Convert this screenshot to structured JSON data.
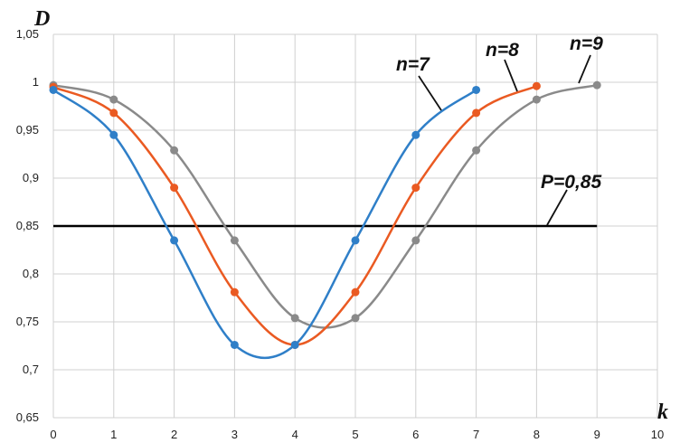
{
  "chart_data": {
    "type": "line",
    "title": "",
    "xlabel": "k",
    "ylabel": "D",
    "xlim": [
      0,
      10
    ],
    "ylim": [
      0.65,
      1.05
    ],
    "x_ticks": [
      "0",
      "1",
      "2",
      "3",
      "4",
      "5",
      "6",
      "7",
      "8",
      "9",
      "10"
    ],
    "y_ticks": [
      "0,65",
      "0,7",
      "0,75",
      "0,8",
      "0,85",
      "0,9",
      "0,95",
      "1",
      "1,05"
    ],
    "grid": true,
    "legend": "none",
    "series": [
      {
        "name": "n=7",
        "color": "#2f7fc8",
        "x": [
          0,
          1,
          2,
          3,
          4,
          5,
          6,
          7
        ],
        "y": [
          0.992,
          0.945,
          0.835,
          0.726,
          0.726,
          0.835,
          0.945,
          0.992
        ]
      },
      {
        "name": "n=8",
        "color": "#ea5a22",
        "x": [
          0,
          1,
          2,
          3,
          4,
          5,
          6,
          7,
          8
        ],
        "y": [
          0.995,
          0.968,
          0.89,
          0.781,
          0.726,
          0.781,
          0.89,
          0.968,
          0.996
        ]
      },
      {
        "name": "n=9",
        "color": "#8a8a8a",
        "x": [
          0,
          1,
          2,
          3,
          4,
          5,
          6,
          7,
          8,
          9
        ],
        "y": [
          0.997,
          0.982,
          0.929,
          0.835,
          0.754,
          0.754,
          0.835,
          0.929,
          0.982,
          0.997
        ]
      }
    ],
    "reference_line": {
      "label": "P=0,85",
      "y": 0.85,
      "x_from": 0,
      "x_to": 9,
      "color": "#000000"
    }
  }
}
